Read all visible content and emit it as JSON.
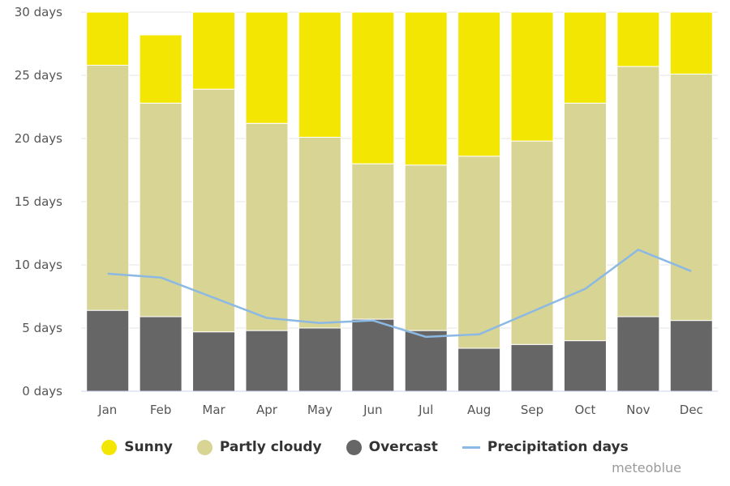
{
  "chart_data": {
    "type": "bar",
    "stacked": true,
    "categories": [
      "Jan",
      "Feb",
      "Mar",
      "Apr",
      "May",
      "Jun",
      "Jul",
      "Aug",
      "Sep",
      "Oct",
      "Nov",
      "Dec"
    ],
    "ylim": [
      0,
      30
    ],
    "yticks": [
      0,
      5,
      10,
      15,
      20,
      25,
      30
    ],
    "ytick_labels": [
      "0 days",
      "5 days",
      "10 days",
      "15 days",
      "20 days",
      "25 days",
      "30 days"
    ],
    "grid": true,
    "legend_position": "bottom",
    "series": [
      {
        "name": "Overcast",
        "color": "#666666",
        "values": [
          6.4,
          5.9,
          4.7,
          4.8,
          5.0,
          5.7,
          4.8,
          3.4,
          3.7,
          4.0,
          5.9,
          5.6
        ]
      },
      {
        "name": "Partly cloudy",
        "color": "#d7d494",
        "values": [
          19.4,
          16.9,
          19.2,
          16.4,
          15.1,
          12.3,
          13.1,
          15.2,
          16.1,
          18.8,
          19.8,
          19.5
        ]
      },
      {
        "name": "Sunny",
        "color": "#f4e603",
        "values": [
          5.2,
          5.4,
          7.1,
          8.8,
          10.9,
          12.0,
          13.1,
          12.4,
          11.2,
          8.2,
          4.3,
          5.9
        ]
      }
    ],
    "line_series": {
      "name": "Precipitation days",
      "color": "#8cb9e3",
      "values": [
        9.3,
        9.0,
        7.4,
        5.8,
        5.4,
        5.6,
        4.3,
        4.5,
        6.3,
        8.1,
        11.2,
        9.5
      ]
    }
  },
  "legend": [
    {
      "label": "Sunny",
      "color": "#f4e603",
      "kind": "dot"
    },
    {
      "label": "Partly cloudy",
      "color": "#d7d494",
      "kind": "dot"
    },
    {
      "label": "Overcast",
      "color": "#666666",
      "kind": "dot"
    },
    {
      "label": "Precipitation days",
      "color": "#8cb9e3",
      "kind": "line"
    }
  ],
  "credit": "meteoblue"
}
